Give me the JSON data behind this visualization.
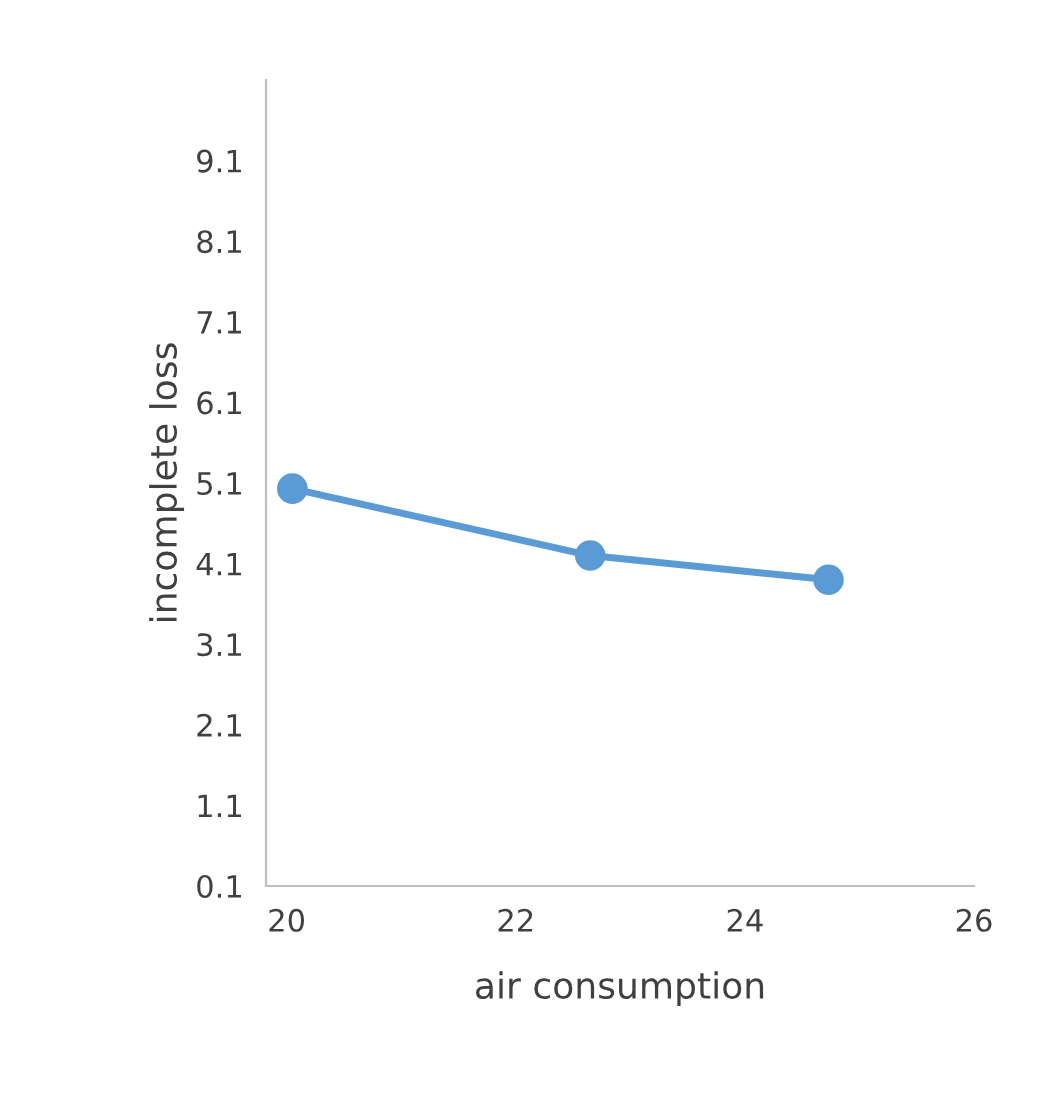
{
  "chart_data": {
    "type": "line",
    "xlabel": "air consumption",
    "ylabel": "incomplete loss",
    "x": [
      20.05,
      22.65,
      24.73
    ],
    "series": [
      {
        "color": "#5b9bd5",
        "values": [
          5.03,
          4.2,
          3.9
        ]
      }
    ],
    "xlim": [
      19.82,
      26
    ],
    "xticks": [
      20,
      22,
      24,
      26
    ],
    "ylim": [
      0.1,
      10.1
    ],
    "yticks": [
      0.1,
      1.1,
      2.1,
      3.1,
      4.1,
      5.1,
      6.1,
      7.1,
      8.1,
      9.1
    ],
    "marker": "circle",
    "line_style": "solid",
    "grid": false,
    "legend": false
  }
}
